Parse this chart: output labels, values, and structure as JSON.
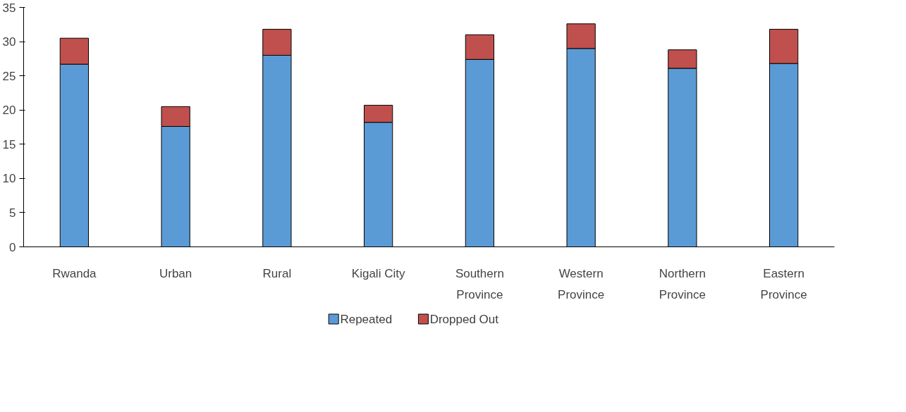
{
  "chart_data": {
    "type": "bar",
    "stacked": true,
    "categories": [
      "Rwanda",
      "Urban",
      "Rural",
      "Kigali City",
      "Southern\nProvince",
      "Western\nProvince",
      "Northern\nProvince",
      "Eastern\nProvince"
    ],
    "series": [
      {
        "name": "Repeated",
        "color": "#5b9bd5",
        "values": [
          26.7,
          17.6,
          28.0,
          18.2,
          27.4,
          29.0,
          26.1,
          26.8
        ]
      },
      {
        "name": "Dropped Out",
        "color": "#c0504d",
        "values": [
          3.8,
          2.9,
          3.8,
          2.5,
          3.6,
          3.6,
          2.7,
          5.0
        ]
      }
    ],
    "ylim": [
      0,
      35
    ],
    "yticks": [
      0,
      5,
      10,
      15,
      20,
      25,
      30,
      35
    ],
    "grid": false,
    "legend": "bottom"
  }
}
